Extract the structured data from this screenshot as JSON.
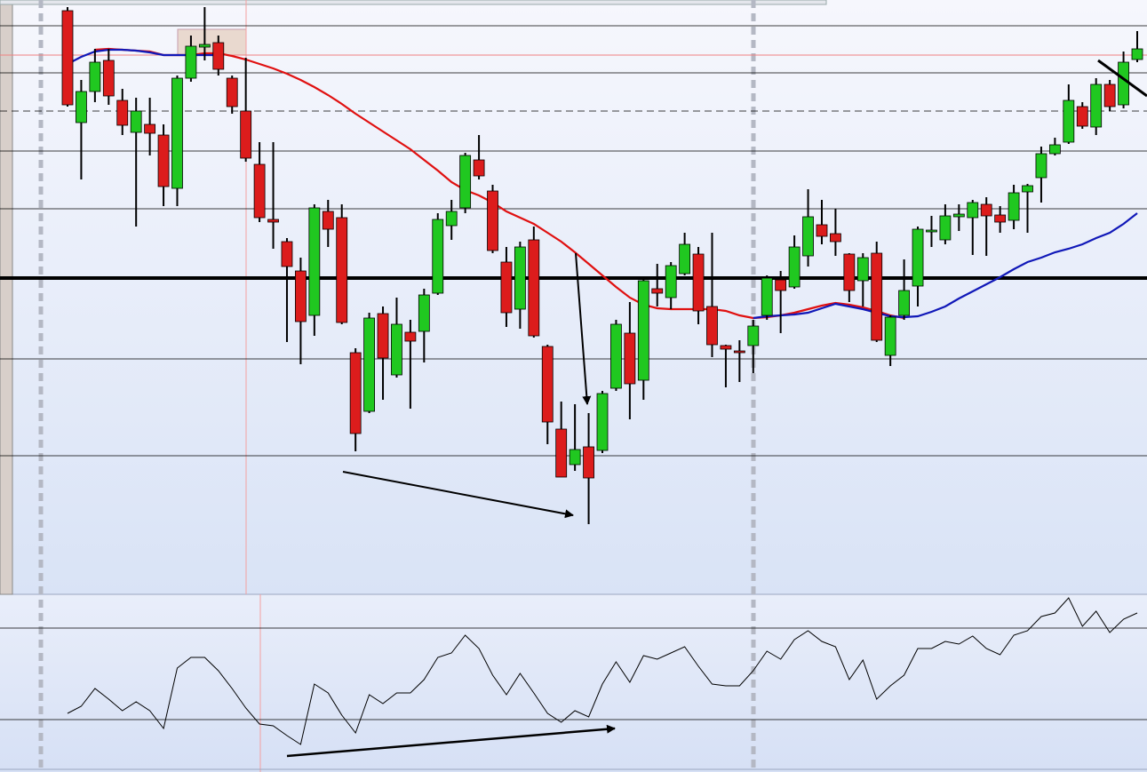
{
  "chart_data": [
    {
      "type": "candlestick",
      "ylim": [
        0,
        669
      ],
      "open": [
        657,
        531,
        566,
        601,
        556,
        520,
        529,
        517,
        457,
        581,
        616,
        621,
        581,
        544,
        484,
        422,
        397,
        364,
        314,
        431,
        424,
        272,
        206,
        316,
        247,
        295,
        296,
        339,
        415,
        435,
        489,
        454,
        374,
        321,
        399,
        279,
        186,
        146,
        166,
        162,
        232,
        294,
        241,
        344,
        334,
        361,
        383,
        324,
        280,
        274,
        280,
        314,
        354,
        346,
        381,
        416,
        406,
        383,
        353,
        384,
        269,
        314,
        347,
        408,
        399,
        425,
        424,
        439,
        427,
        421,
        453,
        469,
        496,
        509,
        549,
        526,
        574,
        551,
        602
      ],
      "high": [
        661,
        579,
        614,
        614,
        569,
        559,
        559,
        529,
        584,
        629,
        661,
        629,
        584,
        604,
        509,
        509,
        401,
        379,
        439,
        444,
        439,
        277,
        317,
        324,
        334,
        309,
        344,
        429,
        444,
        497,
        517,
        461,
        391,
        397,
        414,
        281,
        217,
        214,
        204,
        229,
        309,
        329,
        354,
        372,
        374,
        407,
        391,
        407,
        281,
        286,
        309,
        359,
        364,
        404,
        456,
        444,
        434,
        384,
        384,
        397,
        314,
        377,
        414,
        426,
        439,
        439,
        444,
        447,
        437,
        461,
        462,
        504,
        514,
        574,
        554,
        581,
        579,
        611,
        634
      ],
      "low": [
        549,
        467,
        554,
        551,
        517,
        414,
        494,
        437,
        437,
        577,
        601,
        584,
        541,
        487,
        419,
        389,
        284,
        259,
        291,
        391,
        304,
        161,
        204,
        219,
        244,
        209,
        261,
        337,
        399,
        429,
        467,
        384,
        301,
        299,
        289,
        169,
        132,
        139,
        79,
        159,
        229,
        197,
        219,
        324,
        321,
        359,
        304,
        267,
        233,
        239,
        249,
        309,
        294,
        344,
        369,
        394,
        381,
        329,
        324,
        284,
        257,
        309,
        324,
        391,
        394,
        409,
        382,
        381,
        407,
        411,
        407,
        441,
        494,
        507,
        524,
        517,
        544,
        547,
        599
      ],
      "close": [
        551,
        566,
        599,
        561,
        528,
        544,
        519,
        459,
        581,
        617,
        619,
        591,
        549,
        491,
        424,
        419,
        369,
        307,
        435,
        411,
        306,
        181,
        311,
        266,
        304,
        285,
        337,
        422,
        431,
        494,
        471,
        387,
        317,
        391,
        291,
        194,
        132,
        163,
        131,
        226,
        304,
        237,
        353,
        339,
        370,
        394,
        319,
        281,
        276,
        272,
        302,
        356,
        342,
        391,
        425,
        403,
        397,
        342,
        379,
        286,
        312,
        342,
        411,
        410,
        426,
        428,
        441,
        426,
        419,
        452,
        460,
        496,
        506,
        556,
        527,
        574,
        549,
        599,
        614
      ],
      "up_color": "#20c820",
      "down_color": "#dc1c1c",
      "series": [
        {
          "color": "#e01010",
          "values": [
            null,
            null,
            613,
            614,
            613,
            612,
            611,
            607,
            607,
            607,
            609,
            609,
            606,
            602,
            597,
            592,
            586,
            579,
            571,
            562,
            552,
            541,
            531,
            521,
            511,
            501,
            489,
            477,
            464,
            455,
            449,
            441,
            431,
            424,
            417,
            407,
            397,
            385,
            372,
            359,
            346,
            334,
            326,
            322,
            321,
            321,
            321,
            321,
            319,
            314,
            311,
            312,
            314,
            317,
            321,
            325,
            328,
            326,
            323,
            319,
            314,
            311,
            null,
            null,
            null,
            null,
            null,
            null,
            null,
            null,
            null,
            null,
            null,
            null,
            null,
            null,
            null,
            null,
            null
          ]
        },
        {
          "color": "#1018b8",
          "values": [
            597,
            605,
            611,
            613,
            613,
            612,
            610,
            607,
            607,
            607,
            607,
            607,
            null,
            null,
            null,
            null,
            null,
            null,
            null,
            null,
            null,
            null,
            null,
            null,
            null,
            null,
            null,
            null,
            null,
            null,
            null,
            null,
            null,
            null,
            null,
            null,
            null,
            null,
            null,
            null,
            null,
            null,
            null,
            null,
            null,
            null,
            null,
            null,
            null,
            null,
            311,
            313,
            314,
            315,
            317,
            322,
            327,
            324,
            321,
            317,
            313,
            312,
            313,
            318,
            324,
            333,
            341,
            349,
            357,
            366,
            374,
            379,
            385,
            389,
            394,
            401,
            407,
            417,
            429
          ]
        }
      ],
      "levels": [
        {
          "value": 640,
          "style": "thin"
        },
        {
          "value": 607,
          "style": "pink"
        },
        {
          "value": 587,
          "style": "thin"
        },
        {
          "value": 544,
          "style": "dashed"
        },
        {
          "value": 499,
          "style": "thin"
        },
        {
          "value": 434,
          "style": "thin"
        },
        {
          "value": 356,
          "style": "thick"
        },
        {
          "value": 265,
          "style": "thin"
        },
        {
          "value": 156,
          "style": "thin"
        }
      ]
    },
    {
      "type": "line",
      "ylim": [
        0,
        195
      ],
      "color": "#000000",
      "values": [
        62,
        70,
        90,
        78,
        65,
        75,
        65,
        45,
        113,
        125,
        125,
        110,
        90,
        68,
        50,
        48,
        37,
        27,
        95,
        85,
        60,
        40,
        83,
        73,
        85,
        85,
        100,
        125,
        130,
        150,
        135,
        105,
        83,
        107,
        85,
        62,
        52,
        65,
        58,
        95,
        120,
        97,
        127,
        123,
        130,
        137,
        115,
        95,
        93,
        93,
        110,
        132,
        123,
        145,
        155,
        143,
        137,
        100,
        122,
        78,
        93,
        105,
        135,
        135,
        143,
        140,
        149,
        135,
        128,
        150,
        155,
        171,
        175,
        192,
        160,
        177,
        153,
        168,
        175
      ],
      "levels": [
        {
          "value": 158,
          "style": "thin"
        },
        {
          "value": 55,
          "style": "thin"
        }
      ]
    }
  ]
}
